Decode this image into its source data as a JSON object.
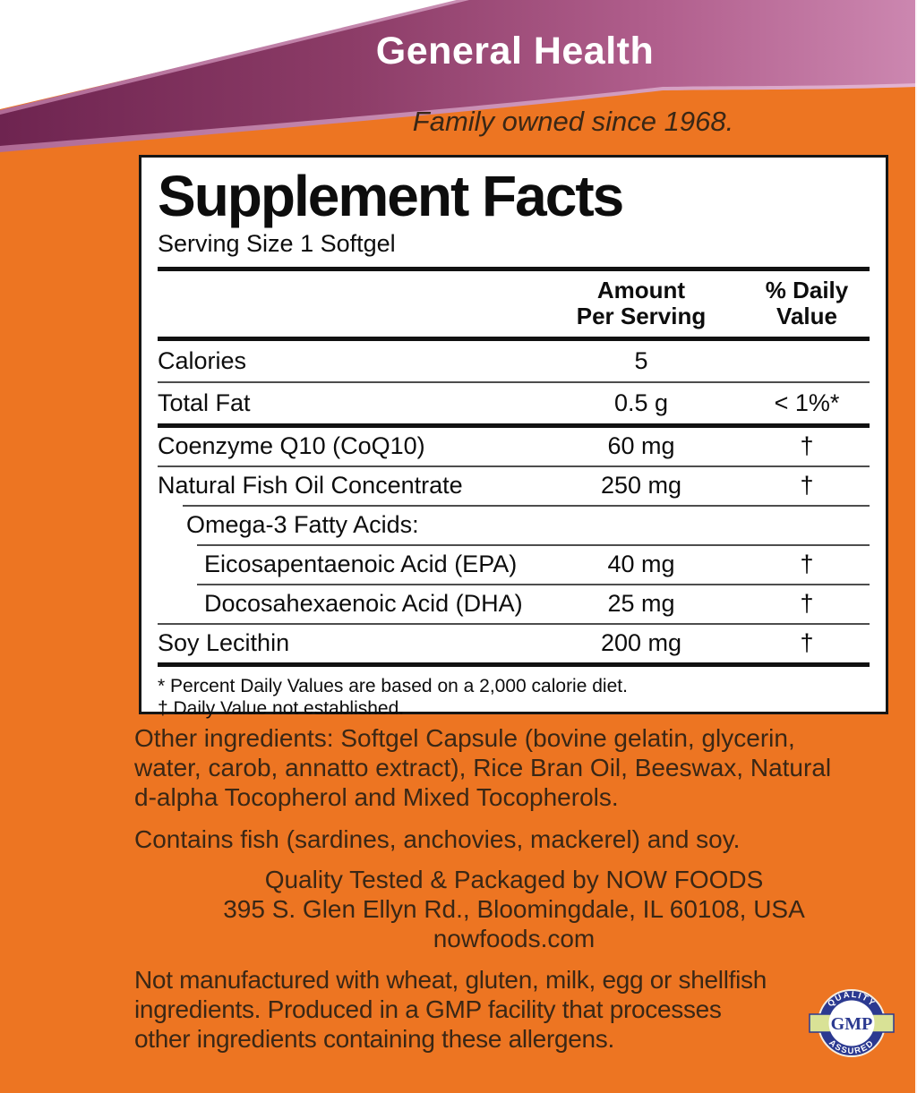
{
  "banner": {
    "category": "General Health",
    "tagline": "Family owned since 1968."
  },
  "panel": {
    "title": "Supplement Facts",
    "serving": "Serving Size 1 Softgel",
    "col_amount": "Amount\nPer Serving",
    "col_dv": "% Daily\nValue",
    "rows": [
      {
        "name": "Calories",
        "amount": "5",
        "dv": "",
        "indent": 0,
        "sep": "thin",
        "tall": true
      },
      {
        "name": "Total Fat",
        "amount": "0.5 g",
        "dv": "< 1%*",
        "indent": 0,
        "sep": "thick",
        "tall": true
      },
      {
        "name": "Coenzyme Q10 (CoQ10)",
        "amount": "60 mg",
        "dv": "†",
        "indent": 0,
        "sep": "thin"
      },
      {
        "name": "Natural Fish Oil Concentrate",
        "amount": "250 mg",
        "dv": "†",
        "indent": 0,
        "sep": "thin-i1"
      },
      {
        "name": "Omega-3 Fatty Acids:",
        "amount": "",
        "dv": "",
        "indent": 1,
        "sep": "thin-i2"
      },
      {
        "name": "Eicosapentaenoic Acid (EPA)",
        "amount": "40 mg",
        "dv": "†",
        "indent": 2,
        "sep": "thin-i2"
      },
      {
        "name": "Docosahexaenoic Acid (DHA)",
        "amount": "25 mg",
        "dv": "†",
        "indent": 2,
        "sep": "thin"
      },
      {
        "name": "Soy Lecithin",
        "amount": "200 mg",
        "dv": "†",
        "indent": 0,
        "sep": "none"
      }
    ],
    "footnotes": [
      "* Percent Daily Values are based on a 2,000 calorie diet.",
      "† Daily Value not established."
    ]
  },
  "body": {
    "other_ingredients_lines": [
      "Other ingredients: Softgel Capsule (bovine gelatin, glycerin,",
      "water, carob, annatto extract), Rice Bran Oil, Beeswax, Natural",
      "d-alpha Tocopherol and Mixed Tocopherols."
    ],
    "contains_lines": [
      "Contains fish (sardines, anchovies, mackerel) and soy."
    ],
    "manufacturer_lines": [
      "Quality Tested & Packaged by NOW FOODS",
      "395 S. Glen Ellyn Rd., Bloomingdale, IL 60108, USA",
      "nowfoods.com"
    ],
    "allergen_lines": [
      "Not manufactured with wheat, gluten, milk, egg or shellfish",
      "ingredients. Produced in a GMP facility that processes",
      "other ingredients containing these allergens."
    ]
  },
  "badge": {
    "top_text": "QUALITY",
    "bottom_text": "ASSURED",
    "center_text": "GMP"
  },
  "colors": {
    "orange": "#ED7522",
    "ink": "#3A2715",
    "panel_ink": "#0d0d0d",
    "navy": "#2B3990",
    "ribbon_green": "#D9E296",
    "purple_dark": "#7B2B58",
    "purple_light": "#CC87B0",
    "edge_highlight": "#DFA8CC"
  }
}
